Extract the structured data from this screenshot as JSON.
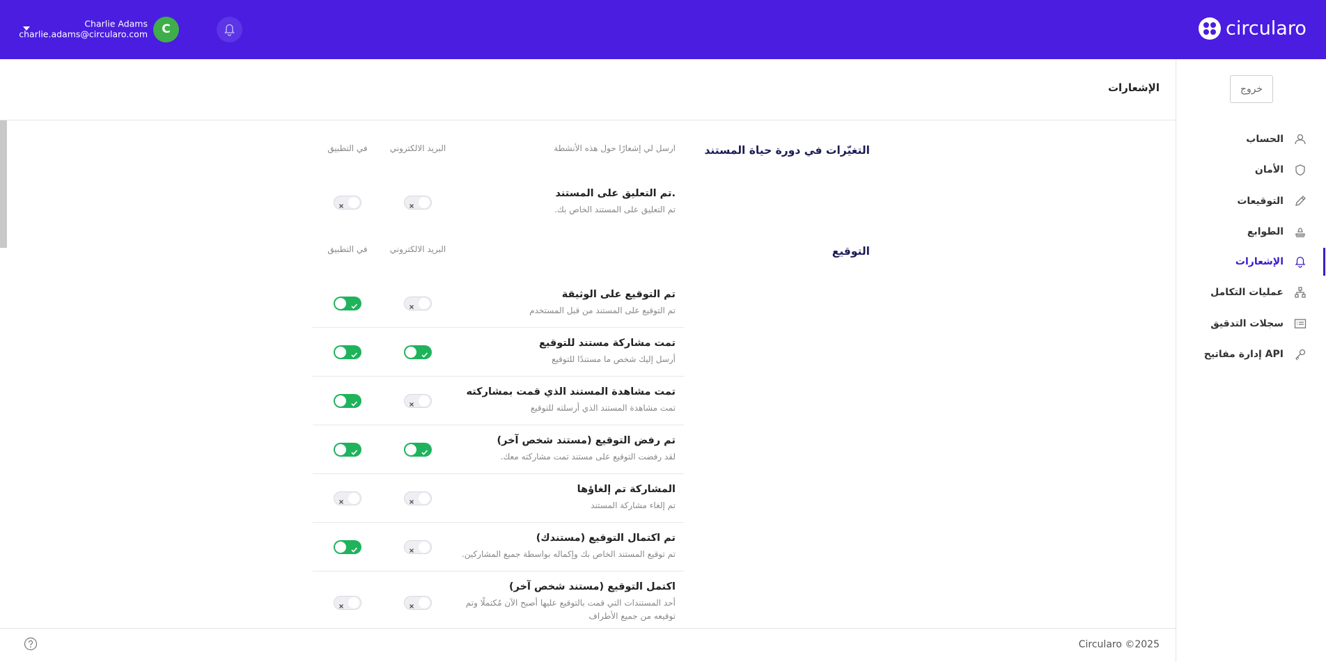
{
  "header": {
    "logo": "circularo",
    "user_name": "Charlie Adams",
    "user_email": "charlie.adams@circularo.com",
    "avatar_initial": "C"
  },
  "sidebar": {
    "logout": "خروج",
    "items": [
      {
        "label": "الحساب",
        "active": false
      },
      {
        "label": "الأمان",
        "active": false
      },
      {
        "label": "التوقيعات",
        "active": false
      },
      {
        "label": "الطوابع",
        "active": false
      },
      {
        "label": "الإشعارات",
        "active": true
      },
      {
        "label": "عمليات التكامل",
        "active": false
      },
      {
        "label": "سجلات التدقيق",
        "active": false
      },
      {
        "label": "إدارة مفاتيح API",
        "active": false
      }
    ]
  },
  "page_title": "الإشعارات",
  "sections": [
    {
      "title": "التغيّرات في دورة حياة المستند",
      "activities_label": "ارسل لي إشعارًا حول هذه الأنشطة",
      "email_label": "البريد الالكتروني",
      "app_label": "في التطبيق",
      "rows": [
        {
          "title": "تم التعليق على المستند.",
          "description": "تم التعليق على المستند الخاص بك.",
          "email": false,
          "app": false
        }
      ]
    },
    {
      "title": "التوقيع",
      "email_label": "البريد الالكتروني",
      "app_label": "في التطبيق",
      "rows": [
        {
          "title": "تم التوقيع على الوثيقة",
          "description": "تم التوقيع على المستند من قبل المستخدم",
          "email": false,
          "app": true
        },
        {
          "title": "تمت مشاركة مستند للتوقيع",
          "description": "أرسل إليك شخص ما مستندًا للتوقيع",
          "email": true,
          "app": true
        },
        {
          "title": "تمت مشاهدة المستند الذي قمت بمشاركته",
          "description": "تمت مشاهدة المستند الذي أرسلته للتوقيع",
          "email": false,
          "app": true
        },
        {
          "title": "تم رفض التوقيع (مستند شخص آخر)",
          "description": "لقد رفضت التوقيع على مستند تمت مشاركته معك.",
          "email": true,
          "app": true
        },
        {
          "title": "المشاركة تم إلغاؤها",
          "description": "تم إلغاء مشاركة المستند",
          "email": false,
          "app": false
        },
        {
          "title": "تم اكتمال التوقيع (مستندك)",
          "description": "تم توقيع المستند الخاص بك وإكماله بواسطة جميع المشاركين.",
          "email": false,
          "app": true
        },
        {
          "title": "اكتمل التوقيع (مستند شخص آخر)",
          "description": "أحد المستندات التي قمت بالتوقيع عليها أصبح الآن مُكتملًا وتم توقيعه من جميع الأطراف",
          "email": false,
          "app": false
        }
      ]
    }
  ],
  "footer": {
    "copyright": "Circularo ©2025"
  }
}
